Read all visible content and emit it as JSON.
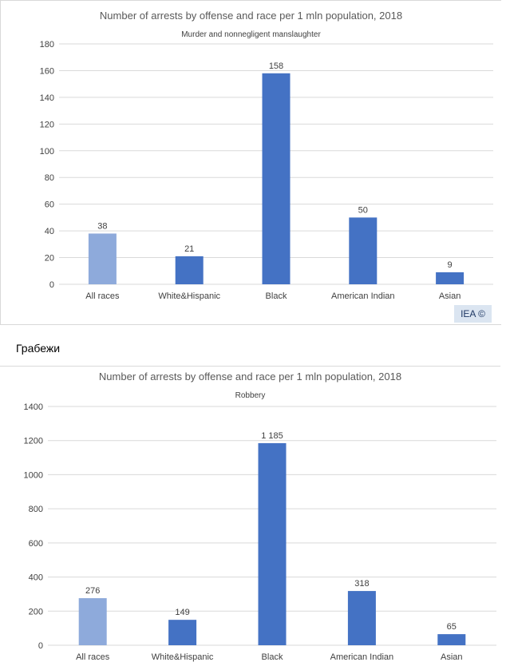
{
  "section_heading": "Грабежи",
  "watermark": "IEA ©",
  "colors": {
    "highlight": "#8eaadb",
    "bar": "#4472c4",
    "grid": "#d9d9d9",
    "text": "#404040"
  },
  "chart_data": [
    {
      "type": "bar",
      "title": "Number of arrests by offense and race per 1 mln population, 2018",
      "subtitle": "Murder and nonnegligent manslaughter",
      "categories": [
        "All races",
        "White&Hispanic",
        "Black",
        "American Indian",
        "Asian"
      ],
      "values": [
        38,
        21,
        158,
        50,
        9
      ],
      "value_labels": [
        "38",
        "21",
        "158",
        "50",
        "9"
      ],
      "ylim": [
        0,
        180
      ],
      "yticks": [
        0,
        20,
        40,
        60,
        80,
        100,
        120,
        140,
        160,
        180
      ],
      "grid": true,
      "highlight_index": 0
    },
    {
      "type": "bar",
      "title": "Number of arrests by offense and race per 1 mln population, 2018",
      "subtitle": "Robbery",
      "categories": [
        "All races",
        "White&Hispanic",
        "Black",
        "American Indian",
        "Asian"
      ],
      "values": [
        276,
        149,
        1185,
        318,
        65
      ],
      "value_labels": [
        "276",
        "149",
        "1 185",
        "318",
        "65"
      ],
      "ylim": [
        0,
        1400
      ],
      "yticks": [
        0,
        200,
        400,
        600,
        800,
        1000,
        1200,
        1400
      ],
      "grid": true,
      "highlight_index": 0
    }
  ]
}
